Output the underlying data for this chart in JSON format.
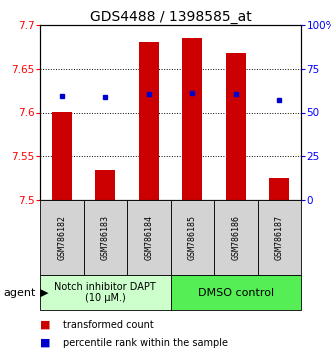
{
  "title": "GDS4488 / 1398585_at",
  "samples": [
    "GSM786182",
    "GSM786183",
    "GSM786184",
    "GSM786185",
    "GSM786186",
    "GSM786187"
  ],
  "bar_values": [
    7.601,
    7.534,
    7.681,
    7.685,
    7.668,
    7.525
  ],
  "bar_base": 7.5,
  "percentile_values": [
    7.619,
    7.618,
    7.621,
    7.622,
    7.621,
    7.614
  ],
  "ylim": [
    7.5,
    7.7
  ],
  "yticks_left": [
    7.5,
    7.55,
    7.6,
    7.65,
    7.7
  ],
  "yticks_right_vals": [
    7.5,
    7.55,
    7.6,
    7.65,
    7.7
  ],
  "yticks_right_labels": [
    "0",
    "25",
    "50",
    "75",
    "100%"
  ],
  "bar_color": "#cc0000",
  "percentile_color": "#0000cc",
  "group1_label": "Notch inhibitor DAPT\n(10 μM.)",
  "group2_label": "DMSO control",
  "group1_samples": [
    0,
    1,
    2
  ],
  "group2_samples": [
    3,
    4,
    5
  ],
  "group1_color": "#ccffcc",
  "group2_color": "#55ee55",
  "agent_label": "agent",
  "legend_bar_label": "transformed count",
  "legend_dot_label": "percentile rank within the sample",
  "title_fontsize": 10,
  "tick_fontsize": 7.5,
  "sample_fontsize": 6,
  "agent_fontsize": 8,
  "legend_fontsize": 7
}
